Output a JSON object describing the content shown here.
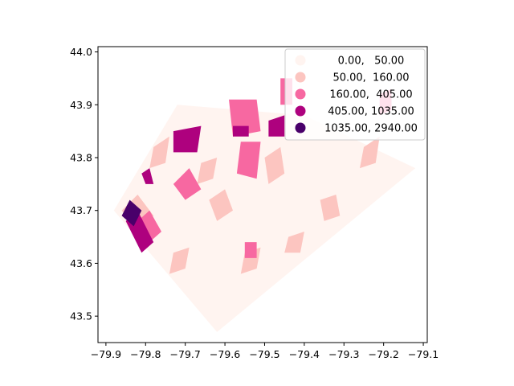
{
  "chart_data": {
    "type": "choropleth",
    "title": "",
    "xlabel": "",
    "ylabel": "",
    "xlim": [
      -79.92,
      -79.09
    ],
    "ylim": [
      43.45,
      44.01
    ],
    "x_ticks": [
      -79.9,
      -79.8,
      -79.7,
      -79.6,
      -79.5,
      -79.4,
      -79.3,
      -79.2,
      -79.1
    ],
    "x_tick_labels": [
      "−79.9",
      "−79.8",
      "−79.7",
      "−79.6",
      "−79.5",
      "−79.4",
      "−79.3",
      "−79.2",
      "−79.1"
    ],
    "y_ticks": [
      43.5,
      43.6,
      43.7,
      43.8,
      43.9,
      44.0
    ],
    "y_tick_labels": [
      "43.5",
      "43.6",
      "43.7",
      "43.8",
      "43.9",
      "44.0"
    ],
    "grid": false,
    "legend_position": "top-right",
    "legend": [
      {
        "label": "0.00,   50.00",
        "color": "#fff4f0"
      },
      {
        "label": "50.00,  160.00",
        "color": "#fcc5c0"
      },
      {
        "label": "160.00,  405.00",
        "color": "#f768a1"
      },
      {
        "label": "405.00, 1035.00",
        "color": "#ae017e"
      },
      {
        "label": "1035.00, 2940.00",
        "color": "#49006a"
      }
    ],
    "regions": [
      {
        "class": 0,
        "polygon": [
          [
            -79.88,
            43.7
          ],
          [
            -79.62,
            43.47
          ],
          [
            -79.12,
            43.78
          ],
          [
            -79.4,
            43.88
          ],
          [
            -79.72,
            43.9
          ]
        ]
      },
      {
        "class": 1,
        "polygon": [
          [
            -79.86,
            43.7
          ],
          [
            -79.82,
            43.73
          ],
          [
            -79.78,
            43.69
          ],
          [
            -79.82,
            43.66
          ]
        ]
      },
      {
        "class": 1,
        "polygon": [
          [
            -79.64,
            43.72
          ],
          [
            -79.6,
            43.74
          ],
          [
            -79.58,
            43.7
          ],
          [
            -79.62,
            43.68
          ]
        ]
      },
      {
        "class": 1,
        "polygon": [
          [
            -79.5,
            43.8
          ],
          [
            -79.46,
            43.82
          ],
          [
            -79.45,
            43.77
          ],
          [
            -79.49,
            43.75
          ]
        ]
      },
      {
        "class": 1,
        "polygon": [
          [
            -79.36,
            43.72
          ],
          [
            -79.32,
            43.73
          ],
          [
            -79.31,
            43.69
          ],
          [
            -79.35,
            43.68
          ]
        ]
      },
      {
        "class": 1,
        "polygon": [
          [
            -79.78,
            43.82
          ],
          [
            -79.74,
            43.84
          ],
          [
            -79.75,
            43.79
          ],
          [
            -79.79,
            43.78
          ]
        ]
      },
      {
        "class": 1,
        "polygon": [
          [
            -79.44,
            43.65
          ],
          [
            -79.4,
            43.66
          ],
          [
            -79.41,
            43.62
          ],
          [
            -79.45,
            43.62
          ]
        ]
      },
      {
        "class": 1,
        "polygon": [
          [
            -79.73,
            43.62
          ],
          [
            -79.69,
            43.63
          ],
          [
            -79.7,
            43.59
          ],
          [
            -79.74,
            43.58
          ]
        ]
      },
      {
        "class": 1,
        "polygon": [
          [
            -79.25,
            43.82
          ],
          [
            -79.21,
            43.84
          ],
          [
            -79.22,
            43.79
          ],
          [
            -79.26,
            43.78
          ]
        ]
      },
      {
        "class": 1,
        "polygon": [
          [
            -79.66,
            43.79
          ],
          [
            -79.62,
            43.8
          ],
          [
            -79.63,
            43.76
          ],
          [
            -79.67,
            43.75
          ]
        ]
      },
      {
        "class": 1,
        "polygon": [
          [
            -79.55,
            43.62
          ],
          [
            -79.51,
            43.63
          ],
          [
            -79.52,
            43.59
          ],
          [
            -79.56,
            43.58
          ]
        ]
      },
      {
        "class": 2,
        "polygon": [
          [
            -79.59,
            43.91
          ],
          [
            -79.52,
            43.91
          ],
          [
            -79.51,
            43.85
          ],
          [
            -79.58,
            43.84
          ]
        ]
      },
      {
        "class": 2,
        "polygon": [
          [
            -79.56,
            43.83
          ],
          [
            -79.51,
            43.83
          ],
          [
            -79.52,
            43.76
          ],
          [
            -79.57,
            43.77
          ]
        ]
      },
      {
        "class": 2,
        "polygon": [
          [
            -79.73,
            43.75
          ],
          [
            -79.69,
            43.78
          ],
          [
            -79.66,
            43.74
          ],
          [
            -79.7,
            43.72
          ]
        ]
      },
      {
        "class": 2,
        "polygon": [
          [
            -79.82,
            43.68
          ],
          [
            -79.79,
            43.7
          ],
          [
            -79.76,
            43.66
          ],
          [
            -79.79,
            43.64
          ]
        ]
      },
      {
        "class": 2,
        "polygon": [
          [
            -79.46,
            43.95
          ],
          [
            -79.43,
            43.95
          ],
          [
            -79.43,
            43.9
          ],
          [
            -79.46,
            43.9
          ]
        ]
      },
      {
        "class": 2,
        "polygon": [
          [
            -79.21,
            43.92
          ],
          [
            -79.18,
            43.93
          ],
          [
            -79.18,
            43.89
          ],
          [
            -79.21,
            43.88
          ]
        ]
      },
      {
        "class": 2,
        "polygon": [
          [
            -79.55,
            43.64
          ],
          [
            -79.52,
            43.64
          ],
          [
            -79.52,
            43.61
          ],
          [
            -79.55,
            43.61
          ]
        ]
      },
      {
        "class": 3,
        "polygon": [
          [
            -79.73,
            43.85
          ],
          [
            -79.66,
            43.86
          ],
          [
            -79.67,
            43.81
          ],
          [
            -79.73,
            43.81
          ]
        ]
      },
      {
        "class": 3,
        "polygon": [
          [
            -79.49,
            43.87
          ],
          [
            -79.45,
            43.88
          ],
          [
            -79.45,
            43.84
          ],
          [
            -79.49,
            43.84
          ]
        ]
      },
      {
        "class": 3,
        "polygon": [
          [
            -79.85,
            43.68
          ],
          [
            -79.82,
            43.7
          ],
          [
            -79.78,
            43.64
          ],
          [
            -79.81,
            43.62
          ]
        ]
      },
      {
        "class": 3,
        "polygon": [
          [
            -79.58,
            43.86
          ],
          [
            -79.54,
            43.86
          ],
          [
            -79.54,
            43.84
          ],
          [
            -79.58,
            43.84
          ]
        ]
      },
      {
        "class": 3,
        "polygon": [
          [
            -79.81,
            43.77
          ],
          [
            -79.79,
            43.78
          ],
          [
            -79.78,
            43.75
          ],
          [
            -79.8,
            43.75
          ]
        ]
      },
      {
        "class": 4,
        "polygon": [
          [
            -79.86,
            43.69
          ],
          [
            -79.84,
            43.72
          ],
          [
            -79.81,
            43.7
          ],
          [
            -79.83,
            43.67
          ]
        ]
      }
    ]
  }
}
